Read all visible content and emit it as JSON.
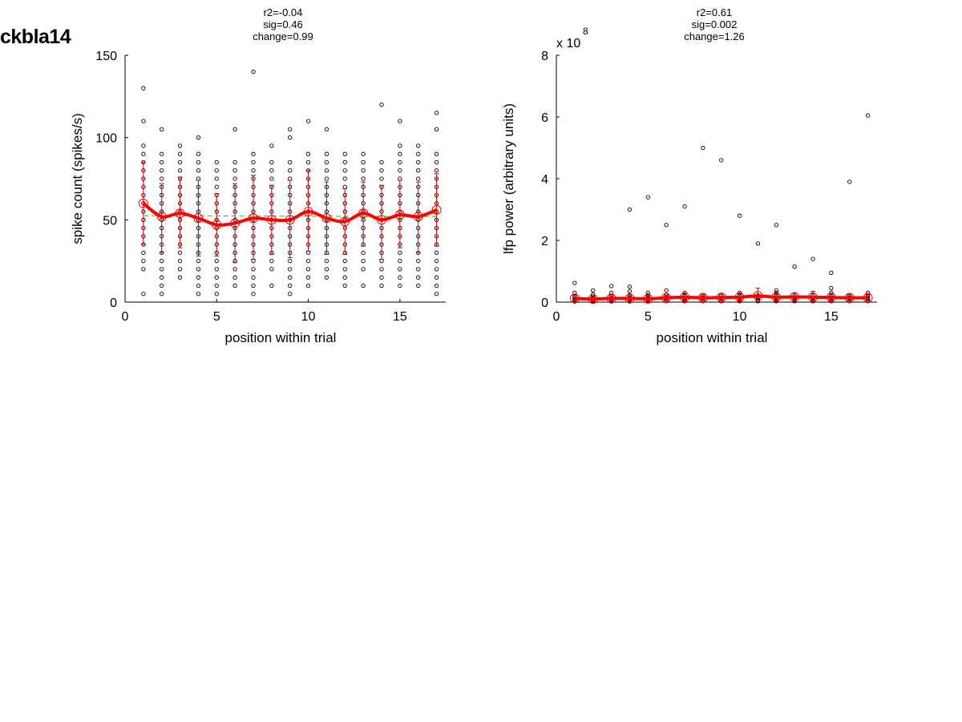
{
  "figure": {
    "label": "ckbla14"
  },
  "colors": {
    "mean_line": "#ff0000",
    "error_bar": "#cc0000",
    "mean_marker": "#ff0000",
    "fit_line": "#33cc33",
    "raw_points": "#000000"
  },
  "chart_data": [
    {
      "type": "scatter",
      "stats": [
        "r2=-0.04",
        "sig=0.46",
        "change=0.99"
      ],
      "xlabel": "position within trial",
      "ylabel": "spike count (spikes/s)",
      "xlim": [
        0,
        17.5
      ],
      "ylim": [
        0,
        150
      ],
      "xticks": [
        0,
        5,
        10,
        15
      ],
      "yticks": [
        0,
        50,
        100,
        150
      ],
      "exponent_label": "",
      "grid": false,
      "x": [
        1,
        2,
        3,
        4,
        5,
        6,
        7,
        8,
        9,
        10,
        11,
        12,
        13,
        14,
        15,
        16,
        17
      ],
      "mean": [
        60,
        52,
        54,
        51,
        47,
        48,
        51,
        50,
        50,
        55,
        51,
        49,
        54,
        50,
        53,
        52,
        56
      ],
      "error_low": [
        35,
        30,
        33,
        28,
        28,
        24,
        26,
        29,
        27,
        31,
        29,
        29,
        34,
        26,
        33,
        30,
        34
      ],
      "error_high": [
        85,
        72,
        76,
        74,
        66,
        72,
        77,
        71,
        74,
        80,
        73,
        69,
        73,
        71,
        74,
        73,
        78
      ],
      "fit": {
        "x": [
          1,
          17
        ],
        "y": [
          52.5,
          52.0
        ]
      },
      "points": [
        [
          5,
          20,
          25,
          30,
          35,
          40,
          45,
          50,
          55,
          60,
          65,
          70,
          75,
          80,
          85,
          90,
          95,
          110,
          130
        ],
        [
          5,
          10,
          15,
          20,
          25,
          30,
          35,
          40,
          45,
          50,
          55,
          60,
          65,
          70,
          75,
          80,
          85,
          90,
          105
        ],
        [
          15,
          20,
          25,
          30,
          35,
          40,
          45,
          50,
          55,
          60,
          65,
          70,
          75,
          80,
          85,
          90,
          95
        ],
        [
          5,
          10,
          15,
          20,
          25,
          30,
          35,
          40,
          45,
          50,
          55,
          60,
          65,
          70,
          75,
          80,
          85,
          90,
          100
        ],
        [
          5,
          10,
          15,
          20,
          25,
          30,
          35,
          40,
          45,
          50,
          55,
          60,
          65,
          70,
          75,
          80,
          85
        ],
        [
          10,
          15,
          20,
          25,
          30,
          35,
          40,
          45,
          50,
          55,
          60,
          65,
          70,
          75,
          80,
          85,
          105
        ],
        [
          5,
          10,
          15,
          20,
          25,
          30,
          35,
          40,
          45,
          50,
          55,
          60,
          65,
          70,
          75,
          80,
          85,
          90,
          140
        ],
        [
          10,
          20,
          25,
          30,
          35,
          40,
          45,
          50,
          55,
          60,
          65,
          70,
          75,
          80,
          85,
          95
        ],
        [
          5,
          10,
          15,
          20,
          25,
          30,
          35,
          40,
          45,
          50,
          55,
          60,
          65,
          70,
          75,
          80,
          85,
          100,
          105
        ],
        [
          10,
          15,
          20,
          25,
          30,
          35,
          40,
          45,
          50,
          55,
          60,
          65,
          70,
          75,
          80,
          85,
          90,
          110
        ],
        [
          15,
          20,
          25,
          30,
          35,
          40,
          45,
          50,
          55,
          60,
          65,
          70,
          75,
          80,
          85,
          90,
          105
        ],
        [
          10,
          15,
          20,
          25,
          30,
          35,
          40,
          45,
          50,
          55,
          60,
          65,
          70,
          75,
          80,
          85,
          90
        ],
        [
          10,
          20,
          25,
          30,
          35,
          40,
          45,
          50,
          55,
          60,
          65,
          70,
          75,
          80,
          85,
          90
        ],
        [
          10,
          15,
          20,
          25,
          30,
          35,
          40,
          45,
          50,
          55,
          60,
          65,
          70,
          75,
          80,
          85,
          120
        ],
        [
          10,
          15,
          20,
          25,
          30,
          35,
          40,
          45,
          50,
          55,
          60,
          65,
          70,
          75,
          80,
          85,
          90,
          95,
          110
        ],
        [
          10,
          15,
          20,
          25,
          30,
          35,
          40,
          45,
          50,
          55,
          60,
          65,
          70,
          75,
          80,
          85,
          90,
          95
        ],
        [
          5,
          10,
          15,
          20,
          25,
          30,
          35,
          40,
          45,
          50,
          55,
          60,
          65,
          70,
          75,
          80,
          85,
          90,
          105,
          115
        ]
      ]
    },
    {
      "type": "scatter",
      "stats": [
        "r2=0.61",
        "sig=0.002",
        "change=1.26"
      ],
      "xlabel": "position within trial",
      "ylabel": "lfp power (arbitrary units)",
      "xlim": [
        0,
        17.5
      ],
      "ylim": [
        0,
        8
      ],
      "xticks": [
        0,
        5,
        10,
        15
      ],
      "yticks": [
        0,
        2,
        4,
        6,
        8
      ],
      "exponent_label": "x 10",
      "exponent_power": "8",
      "grid": false,
      "x": [
        1,
        2,
        3,
        4,
        5,
        6,
        7,
        8,
        9,
        10,
        11,
        12,
        13,
        14,
        15,
        16,
        17
      ],
      "mean": [
        0.12,
        0.1,
        0.12,
        0.12,
        0.11,
        0.14,
        0.16,
        0.14,
        0.15,
        0.16,
        0.2,
        0.16,
        0.17,
        0.16,
        0.15,
        0.14,
        0.14
      ],
      "error_low": [
        0.02,
        0.02,
        0.03,
        0.02,
        0.02,
        0.05,
        0.06,
        0.05,
        0.05,
        0.06,
        0.05,
        0.04,
        0.05,
        0.04,
        0.04,
        0.04,
        0.04
      ],
      "error_high": [
        0.22,
        0.18,
        0.21,
        0.24,
        0.22,
        0.23,
        0.28,
        0.24,
        0.26,
        0.3,
        0.45,
        0.28,
        0.3,
        0.35,
        0.26,
        0.24,
        0.24
      ],
      "fit": {
        "x": [
          1,
          17
        ],
        "y": [
          0.1,
          0.17
        ]
      },
      "points": [
        [
          0.02,
          0.05,
          0.08,
          0.12,
          0.18,
          0.3,
          0.62
        ],
        [
          0.02,
          0.04,
          0.08,
          0.12,
          0.18,
          0.25,
          0.38
        ],
        [
          0.02,
          0.05,
          0.08,
          0.12,
          0.2,
          0.3,
          0.52
        ],
        [
          0.02,
          0.05,
          0.1,
          0.15,
          0.22,
          0.35,
          0.5,
          3.0
        ],
        [
          0.02,
          0.05,
          0.1,
          0.15,
          0.22,
          0.3,
          3.4
        ],
        [
          0.03,
          0.06,
          0.1,
          0.15,
          0.22,
          0.38,
          2.5
        ],
        [
          0.03,
          0.06,
          0.1,
          0.15,
          0.22,
          0.3,
          3.1
        ],
        [
          0.03,
          0.06,
          0.1,
          0.15,
          0.22,
          5.0
        ],
        [
          0.03,
          0.06,
          0.1,
          0.15,
          0.22,
          4.6
        ],
        [
          0.03,
          0.06,
          0.1,
          0.15,
          0.22,
          0.3,
          2.8
        ],
        [
          0.03,
          0.06,
          0.1,
          0.15,
          0.22,
          1.9
        ],
        [
          0.03,
          0.06,
          0.1,
          0.15,
          0.22,
          0.3,
          0.38,
          2.5
        ],
        [
          0.03,
          0.06,
          0.1,
          0.15,
          0.22,
          1.15
        ],
        [
          0.03,
          0.06,
          0.1,
          0.15,
          0.22,
          1.4
        ],
        [
          0.03,
          0.06,
          0.1,
          0.15,
          0.22,
          0.3,
          0.45,
          0.95
        ],
        [
          0.03,
          0.06,
          0.1,
          0.15,
          0.22,
          3.9
        ],
        [
          0.03,
          0.06,
          0.1,
          0.15,
          0.22,
          0.3,
          6.05
        ]
      ]
    }
  ]
}
